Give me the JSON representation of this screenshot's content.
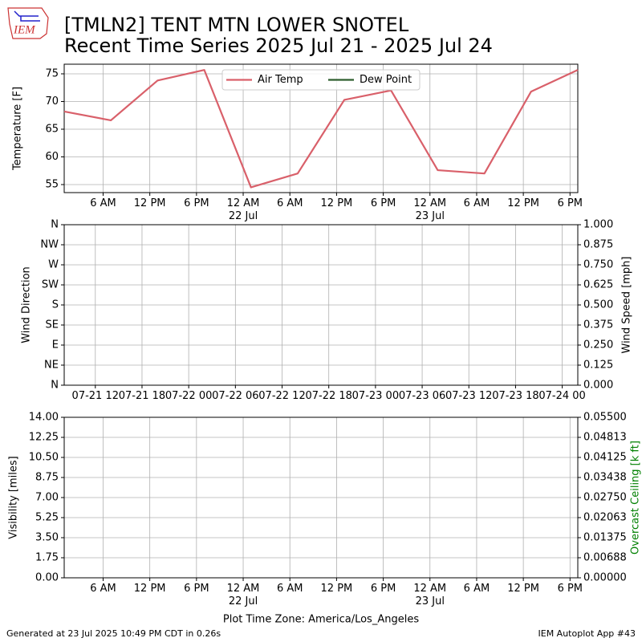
{
  "header": {
    "logo": "IEM",
    "title": "[TMLN2] TENT MTN LOWER SNOTEL",
    "subtitle": "Recent Time Series 2025 Jul 21 - 2025 Jul 24"
  },
  "footer": {
    "left": "Generated at 23 Jul 2025 10:49 PM CDT in 0.26s",
    "right": "IEM Autoplot App #43"
  },
  "chart_data": [
    {
      "type": "line",
      "ylabel": "Temperature [F]",
      "grid": true,
      "legend": "upper center",
      "x": [
        "2025-07-21 01:00",
        "2025-07-21 07:00",
        "2025-07-21 13:00",
        "2025-07-21 19:00",
        "2025-07-22 01:00",
        "2025-07-22 07:00",
        "2025-07-22 13:00",
        "2025-07-22 19:00",
        "2025-07-23 01:00",
        "2025-07-23 07:00",
        "2025-07-23 13:00",
        "2025-07-23 19:00"
      ],
      "series": [
        {
          "name": "Air Temp",
          "color": "#d9606a",
          "values": [
            68.2,
            66.6,
            73.8,
            75.7,
            54.5,
            57.0,
            70.3,
            72.0,
            57.6,
            57.0,
            71.8,
            75.7
          ]
        },
        {
          "name": "Dew Point",
          "color": "#2e5e2e",
          "values": [
            null,
            null,
            null,
            null,
            null,
            null,
            null,
            null,
            null,
            null,
            null,
            null
          ]
        }
      ],
      "xlim": [
        "2025-07-21 01:00",
        "2025-07-23 19:00"
      ],
      "xticks": [
        {
          "value": "2025-07-21 06:00",
          "label": "6 AM"
        },
        {
          "value": "2025-07-21 12:00",
          "label": "12 PM"
        },
        {
          "value": "2025-07-21 18:00",
          "label": "6 PM"
        },
        {
          "value": "2025-07-22 00:00",
          "label": "12 AM\n22 Jul"
        },
        {
          "value": "2025-07-22 06:00",
          "label": "6 AM"
        },
        {
          "value": "2025-07-22 12:00",
          "label": "12 PM"
        },
        {
          "value": "2025-07-22 18:00",
          "label": "6 PM"
        },
        {
          "value": "2025-07-23 00:00",
          "label": "12 AM\n23 Jul"
        },
        {
          "value": "2025-07-23 06:00",
          "label": "6 AM"
        },
        {
          "value": "2025-07-23 12:00",
          "label": "12 PM"
        },
        {
          "value": "2025-07-23 18:00",
          "label": "6 PM"
        }
      ],
      "ylim": [
        53.55,
        76.74
      ],
      "yticks": [
        55,
        60,
        65,
        70,
        75
      ]
    },
    {
      "type": "line",
      "ylabel": "Wind Direction",
      "y2label": "Wind Speed [mph]",
      "grid": true,
      "series": [],
      "xlim": [
        "2025-07-21 08:00",
        "2025-07-24 02:00"
      ],
      "xticks": [
        {
          "value": "2025-07-21 12:00",
          "label": "07-21 12"
        },
        {
          "value": "2025-07-21 18:00",
          "label": "07-21 18"
        },
        {
          "value": "2025-07-22 00:00",
          "label": "07-22 00"
        },
        {
          "value": "2025-07-22 06:00",
          "label": "07-22 06"
        },
        {
          "value": "2025-07-22 12:00",
          "label": "07-22 12"
        },
        {
          "value": "2025-07-22 18:00",
          "label": "07-22 18"
        },
        {
          "value": "2025-07-23 00:00",
          "label": "07-23 00"
        },
        {
          "value": "2025-07-23 06:00",
          "label": "07-23 06"
        },
        {
          "value": "2025-07-23 12:00",
          "label": "07-23 12"
        },
        {
          "value": "2025-07-23 18:00",
          "label": "07-23 18"
        },
        {
          "value": "2025-07-24 00:00",
          "label": "07-24 00"
        }
      ],
      "ylim": [
        0,
        360
      ],
      "yticks": [
        {
          "value": 0,
          "label": "N"
        },
        {
          "value": 45,
          "label": "NE"
        },
        {
          "value": 90,
          "label": "E"
        },
        {
          "value": 135,
          "label": "SE"
        },
        {
          "value": 180,
          "label": "S"
        },
        {
          "value": 225,
          "label": "SW"
        },
        {
          "value": 270,
          "label": "W"
        },
        {
          "value": 315,
          "label": "NW"
        },
        {
          "value": 360,
          "label": "N"
        }
      ],
      "y2lim": [
        0,
        1
      ],
      "y2ticks": [
        {
          "value": 0,
          "label": "0.000"
        },
        0.125,
        {
          "value": 0.25,
          "label": "0.250"
        },
        0.375,
        {
          "value": 0.5,
          "label": "0.500"
        },
        0.625,
        {
          "value": 0.75,
          "label": "0.750"
        },
        0.875,
        {
          "value": 1,
          "label": "1.000"
        }
      ]
    },
    {
      "type": "line",
      "ylabel": "Visibility [miles]",
      "y2label": "Overcast Ceiling [k ft]",
      "y2label_color": "green",
      "xlabel": "Plot Time Zone: America/Los_Angeles",
      "grid": true,
      "series": [],
      "xlim": [
        "2025-07-21 01:00",
        "2025-07-23 19:00"
      ],
      "xticks": [
        {
          "value": "2025-07-21 06:00",
          "label": "6 AM"
        },
        {
          "value": "2025-07-21 12:00",
          "label": "12 PM"
        },
        {
          "value": "2025-07-21 18:00",
          "label": "6 PM"
        },
        {
          "value": "2025-07-22 00:00",
          "label": "12 AM\n22 Jul"
        },
        {
          "value": "2025-07-22 06:00",
          "label": "6 AM"
        },
        {
          "value": "2025-07-22 12:00",
          "label": "12 PM"
        },
        {
          "value": "2025-07-22 18:00",
          "label": "6 PM"
        },
        {
          "value": "2025-07-23 00:00",
          "label": "12 AM\n23 Jul"
        },
        {
          "value": "2025-07-23 06:00",
          "label": "6 AM"
        },
        {
          "value": "2025-07-23 12:00",
          "label": "12 PM"
        },
        {
          "value": "2025-07-23 18:00",
          "label": "6 PM"
        }
      ],
      "ylim": [
        0,
        14
      ],
      "yticks": [
        {
          "value": 0,
          "label": "0.00"
        },
        1.75,
        {
          "value": 3.5,
          "label": "3.50"
        },
        5.25,
        {
          "value": 7,
          "label": "7.00"
        },
        8.75,
        {
          "value": 10.5,
          "label": "10.50"
        },
        12.25,
        {
          "value": 14,
          "label": "14.00"
        }
      ],
      "y2lim": [
        0,
        0.055
      ],
      "y2ticks": [
        {
          "value": 0,
          "label": "0.00000"
        },
        {
          "value": 0.006875,
          "label": "0.00688"
        },
        0.01375,
        {
          "value": 0.020625,
          "label": "0.02063"
        },
        {
          "value": 0.0275,
          "label": "0.02750"
        },
        {
          "value": 0.034375,
          "label": "0.03438"
        },
        0.04125,
        {
          "value": 0.048125,
          "label": "0.04813"
        },
        {
          "value": 0.055,
          "label": "0.05500"
        }
      ]
    }
  ]
}
